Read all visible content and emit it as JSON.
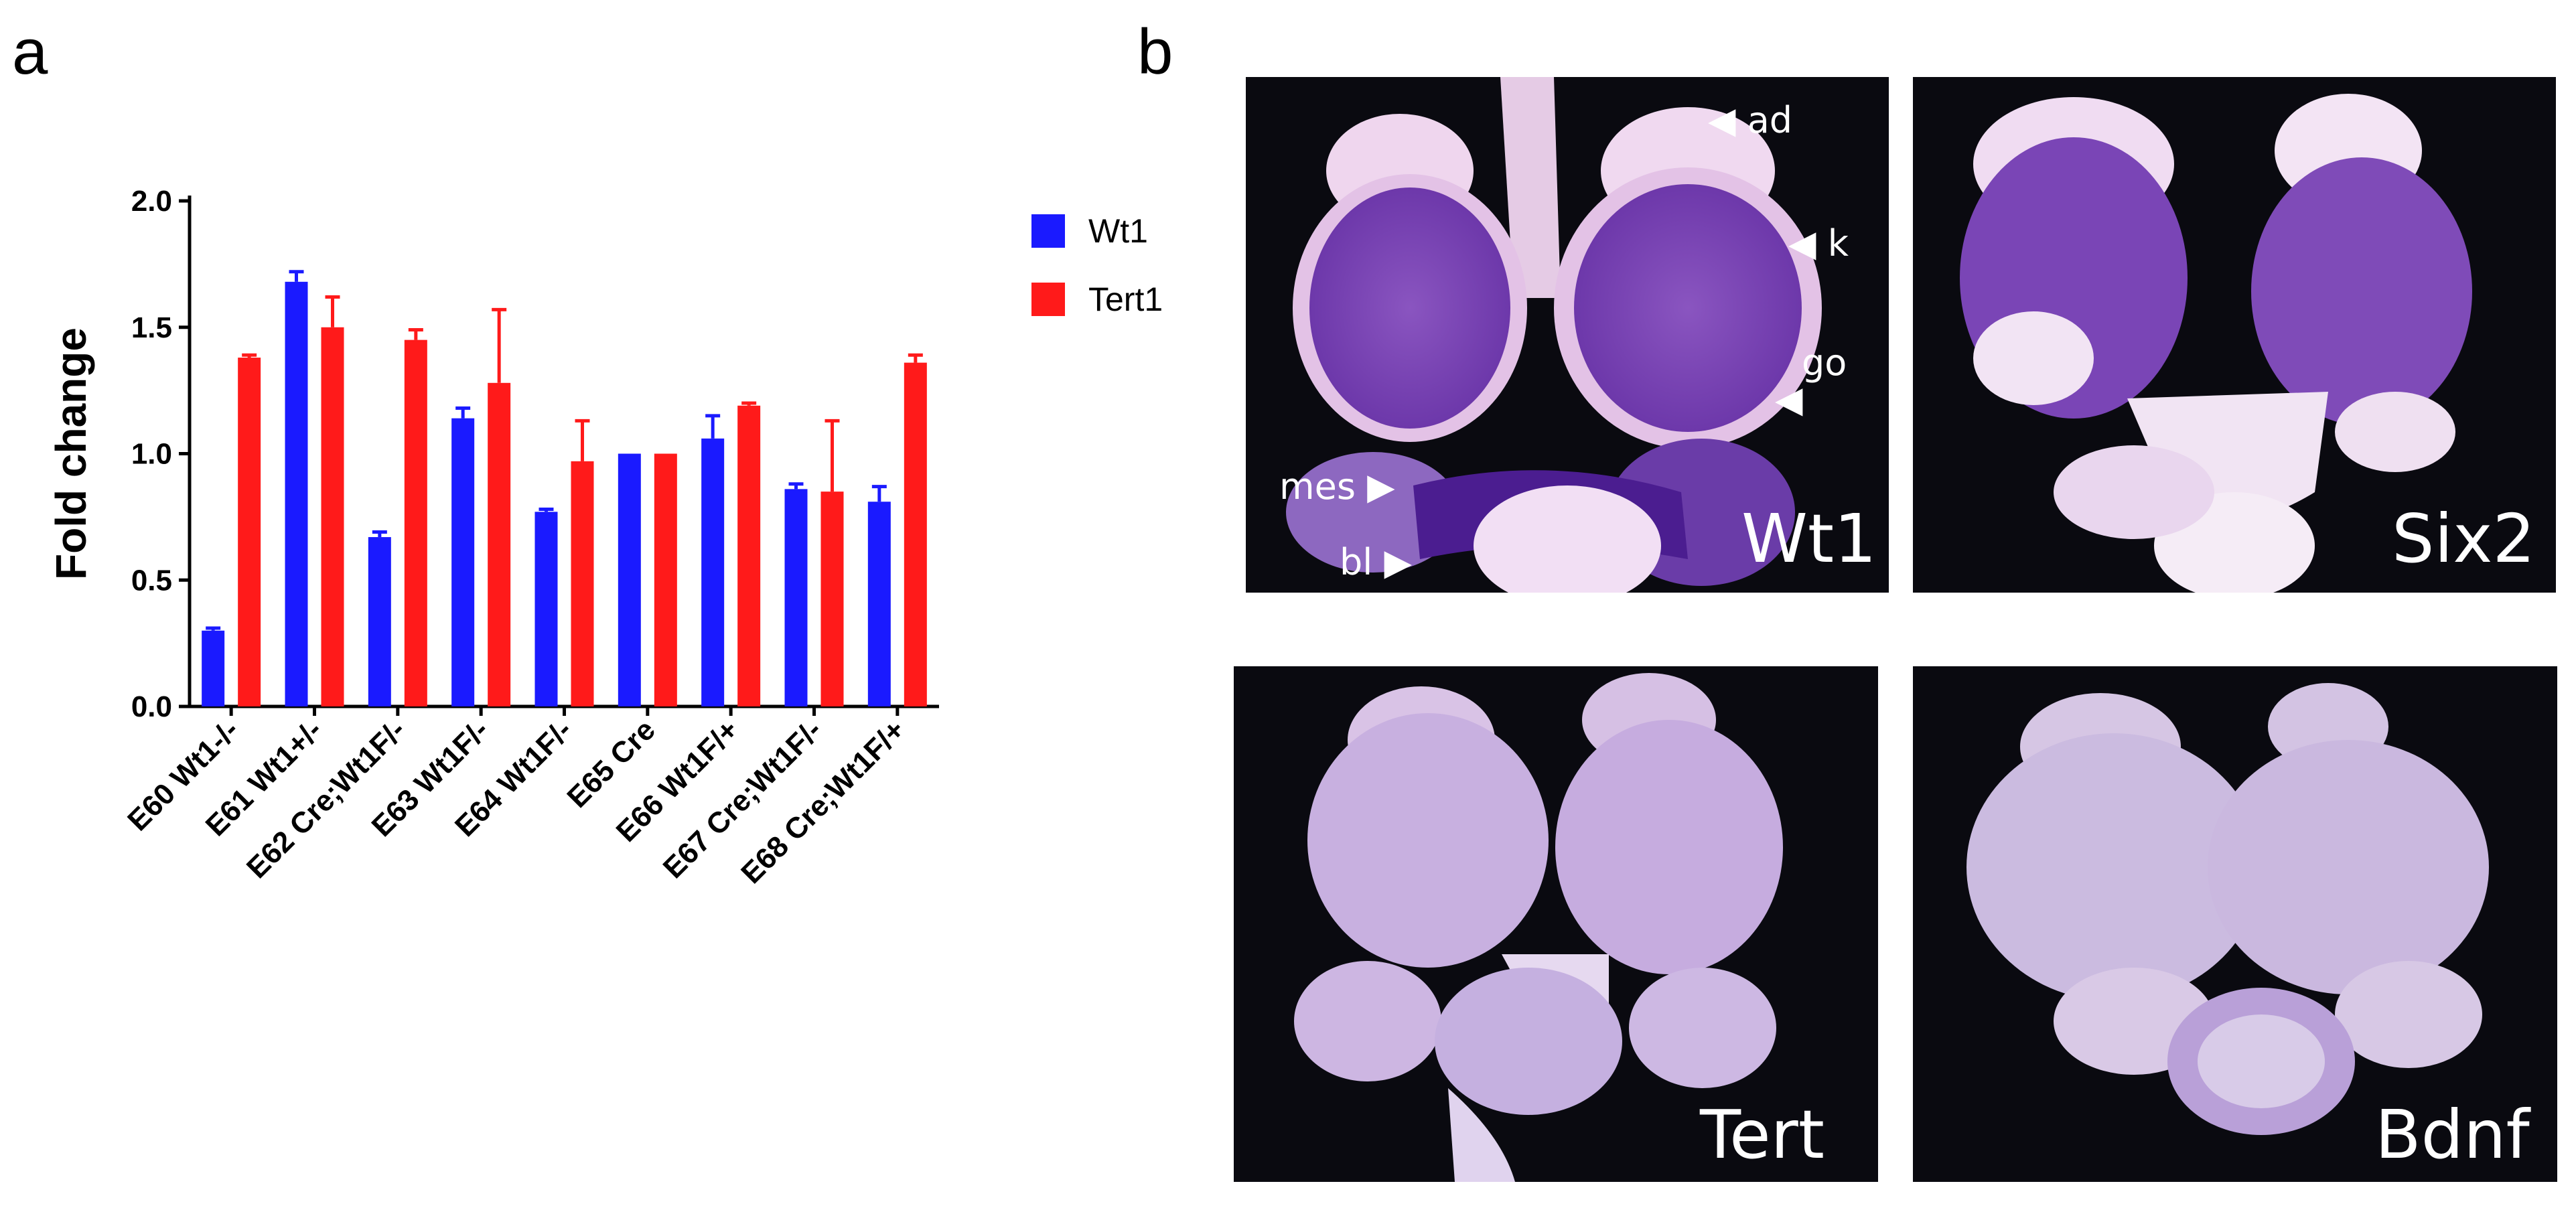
{
  "figure": {
    "panel_a": "a",
    "panel_b": "b"
  },
  "chart_data": {
    "type": "bar",
    "categories": [
      "E60 Wt1-/-",
      "E61 Wt1+/-",
      "E62 Cre;Wt1F/-",
      "E63 Wt1F/-",
      "E64 Wt1F/-",
      "E65 Cre",
      "E66 Wt1F/+",
      "E67 Cre;Wt1F/-",
      "E68 Cre;Wt1F/+"
    ],
    "series": [
      {
        "name": "Wt1",
        "color": "#1a1aff",
        "values": [
          0.3,
          1.68,
          0.67,
          1.14,
          0.77,
          1.0,
          1.06,
          0.86,
          0.81
        ],
        "errors": [
          0.01,
          0.04,
          0.02,
          0.04,
          0.01,
          0.0,
          0.09,
          0.02,
          0.06
        ]
      },
      {
        "name": "Tert1",
        "color": "#ff1a1a",
        "values": [
          1.38,
          1.5,
          1.45,
          1.28,
          0.97,
          1.0,
          1.19,
          0.85,
          1.36
        ],
        "errors": [
          0.01,
          0.12,
          0.04,
          0.29,
          0.16,
          0.0,
          0.01,
          0.28,
          0.03
        ]
      }
    ],
    "title": "",
    "xlabel": "",
    "ylabel": "Fold change",
    "ylim": [
      0,
      2.0
    ],
    "yticks": [
      "0.0",
      "0.5",
      "1.0",
      "1.5",
      "2.0"
    ],
    "grid": false,
    "legend": "top-right"
  },
  "panel_b": {
    "images": [
      {
        "id": "wt1",
        "label": "Wt1"
      },
      {
        "id": "six2",
        "label": "Six2"
      },
      {
        "id": "tert",
        "label": "Tert"
      },
      {
        "id": "bdnf",
        "label": "Bdnf"
      }
    ],
    "annotations": {
      "ad": "ad",
      "k": "k",
      "go": "go",
      "mes": "mes",
      "bl": "bl"
    }
  }
}
